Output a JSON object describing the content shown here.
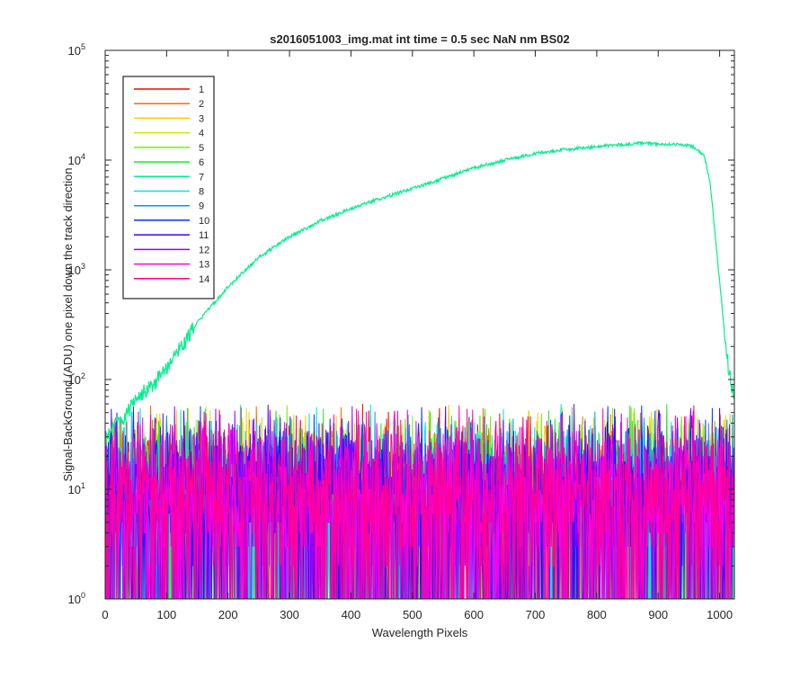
{
  "chart_data": {
    "type": "line",
    "title": "s2016051003_img.mat int time = 0.5 sec  NaN nm BS02",
    "xlabel": "Wavelength Pixels",
    "ylabel": "Signal-BackGround (ADU) one pixel down the track direction",
    "xlim": [
      0,
      1024
    ],
    "ylim": [
      1,
      100000
    ],
    "yscale": "log",
    "grid": false,
    "legend_position": "top-left",
    "x_ticks": [
      "0",
      "100",
      "200",
      "300",
      "400",
      "500",
      "600",
      "700",
      "800",
      "900",
      "1000"
    ],
    "y_ticks": [
      {
        "base": "10",
        "exp": "0"
      },
      {
        "base": "10",
        "exp": "1"
      },
      {
        "base": "10",
        "exp": "2"
      },
      {
        "base": "10",
        "exp": "3"
      },
      {
        "base": "10",
        "exp": "4"
      },
      {
        "base": "10",
        "exp": "5"
      }
    ],
    "signal_series": {
      "name": "7",
      "x": [
        0,
        20,
        40,
        60,
        80,
        100,
        120,
        150,
        180,
        200,
        250,
        300,
        350,
        400,
        450,
        500,
        550,
        600,
        650,
        700,
        750,
        800,
        850,
        880,
        900,
        930,
        950,
        960,
        975,
        985,
        995,
        1005,
        1015,
        1024
      ],
      "y": [
        28,
        40,
        55,
        75,
        95,
        130,
        190,
        330,
        520,
        700,
        1300,
        2000,
        2800,
        3600,
        4500,
        5500,
        6800,
        8500,
        10000,
        11500,
        12500,
        13200,
        14000,
        14200,
        14000,
        13800,
        13600,
        13000,
        11000,
        6000,
        1500,
        400,
        120,
        70
      ]
    },
    "noise_level": {
      "mean": 10,
      "min": 1,
      "max": 60
    },
    "series": [
      {
        "name": "1",
        "color": "#ff0000"
      },
      {
        "name": "2",
        "color": "#ff6a00"
      },
      {
        "name": "3",
        "color": "#ffc800"
      },
      {
        "name": "4",
        "color": "#c8e800"
      },
      {
        "name": "5",
        "color": "#78f000"
      },
      {
        "name": "6",
        "color": "#1ee81e"
      },
      {
        "name": "7",
        "color": "#00f08c"
      },
      {
        "name": "8",
        "color": "#00e6e6"
      },
      {
        "name": "9",
        "color": "#0096ff"
      },
      {
        "name": "10",
        "color": "#0032ff"
      },
      {
        "name": "11",
        "color": "#3c00ff"
      },
      {
        "name": "12",
        "color": "#9600ff"
      },
      {
        "name": "13",
        "color": "#ff00e6"
      },
      {
        "name": "14",
        "color": "#ff0096"
      }
    ]
  }
}
